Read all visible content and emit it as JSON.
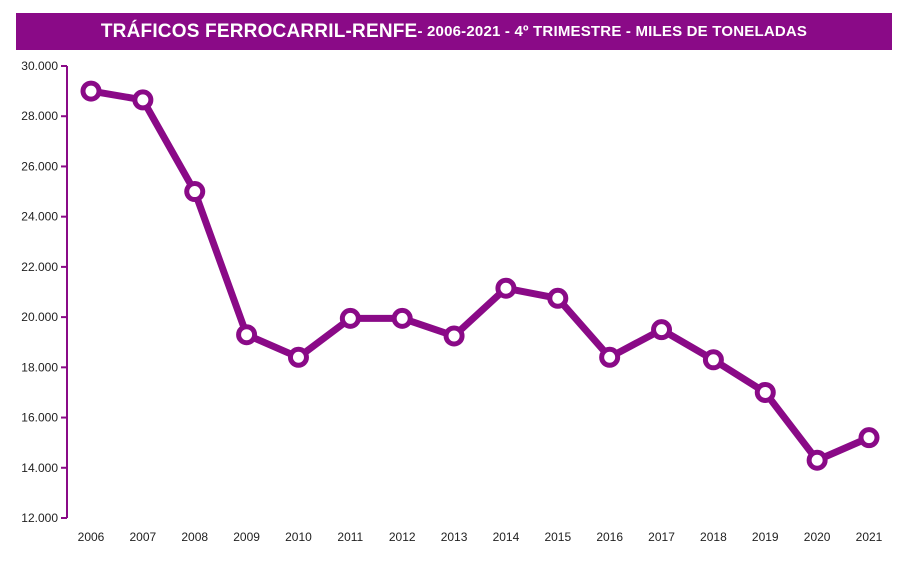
{
  "header": {
    "title_main": "TRÁFICOS FERROCARRIL-RENFE",
    "title_sub": " - 2006-2021 - 4º TRIMESTRE - MILES DE TONELADAS"
  },
  "colors": {
    "accent": "#8a0a87",
    "title_bar": "#8a0a87",
    "marker_fill": "#ffffff",
    "text": "#222222"
  },
  "chart_data": {
    "type": "line",
    "title": "TRÁFICOS FERROCARRIL-RENFE - 2006-2021 - 4º TRIMESTRE - MILES DE TONELADAS",
    "xlabel": "",
    "ylabel": "",
    "categories": [
      "2006",
      "2007",
      "2008",
      "2009",
      "2010",
      "2011",
      "2012",
      "2013",
      "2014",
      "2015",
      "2016",
      "2017",
      "2018",
      "2019",
      "2020",
      "2021"
    ],
    "series": [
      {
        "values": [
          29000,
          28650,
          25000,
          19300,
          18400,
          19950,
          19950,
          19250,
          21150,
          20750,
          18400,
          19500,
          18300,
          17000,
          14300,
          15200
        ]
      }
    ],
    "ylim": [
      12000,
      30000
    ],
    "yticks": [
      12000,
      14000,
      16000,
      18000,
      20000,
      22000,
      24000,
      26000,
      28000,
      30000
    ],
    "ytick_labels": [
      "12.000",
      "14.000",
      "16.000",
      "18.000",
      "20.000",
      "22.000",
      "24.000",
      "26.000",
      "28.000",
      "30.000"
    ],
    "grid": false,
    "legend": "none"
  }
}
